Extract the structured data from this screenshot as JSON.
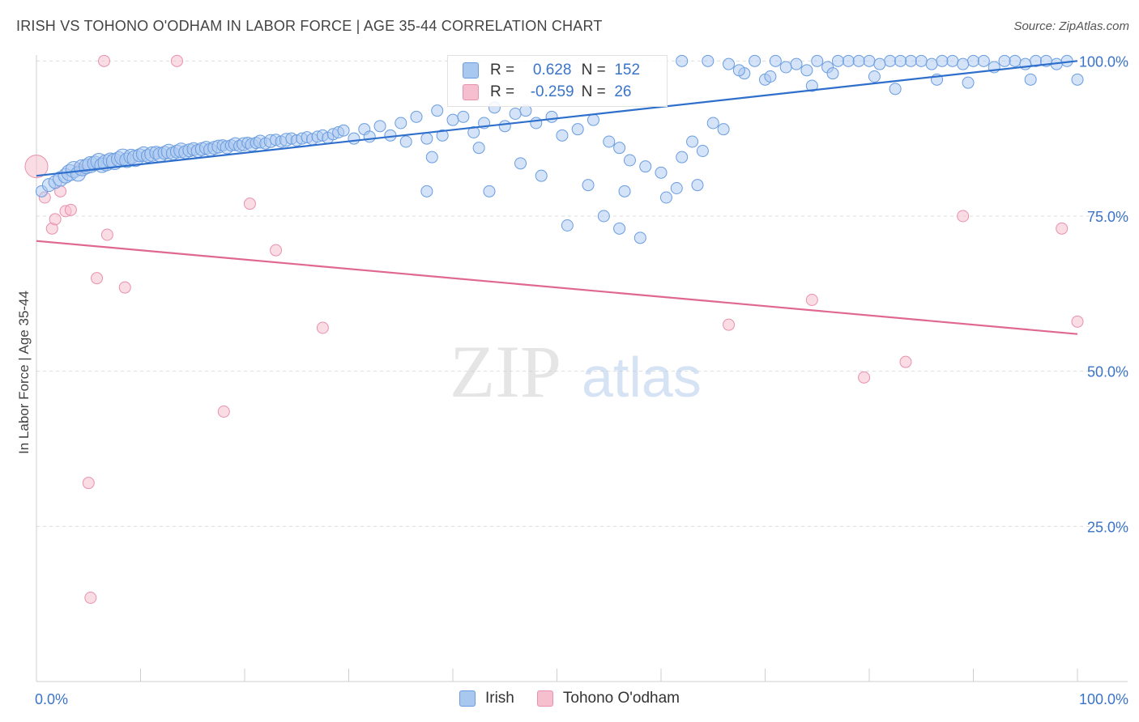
{
  "title": "IRISH VS TOHONO O'ODHAM IN LABOR FORCE | AGE 35-44 CORRELATION CHART",
  "source": "Source: ZipAtlas.com",
  "watermark": {
    "zip": "ZIP",
    "atlas": "atlas"
  },
  "legend": [
    {
      "r_label": "R =",
      "r_value": "0.628",
      "n_label": "N =",
      "n_value": "152"
    },
    {
      "r_label": "R =",
      "r_value": "-0.259",
      "n_label": "N =",
      "n_value": "26"
    }
  ],
  "colors": {
    "irish_fill": "#a9c8f0",
    "irish_stroke": "#6a9de0",
    "irish_line": "#2f6fcc",
    "tohono_fill": "#f6bfd0",
    "tohono_stroke": "#e891ad",
    "tohono_line": "#e0688f",
    "axis_label": "#3a74c8",
    "grid": "#dddddd"
  },
  "chart_data": {
    "type": "scatter",
    "title": "IRISH VS TOHONO O'ODHAM IN LABOR FORCE | AGE 35-44 CORRELATION CHART",
    "xlabel": "",
    "ylabel": "In Labor Force | Age 35-44",
    "xlim": [
      0,
      100
    ],
    "ylim": [
      0,
      102
    ],
    "x_tick_labels": [
      "0.0%",
      "100.0%"
    ],
    "y_ticks": [
      25,
      50,
      75,
      100
    ],
    "y_tick_labels": [
      "25.0%",
      "50.0%",
      "75.0%",
      "100.0%"
    ],
    "grid": true,
    "legend_position": "top-center",
    "series": [
      {
        "name": "Irish",
        "r": 0.628,
        "n": 152,
        "trend": {
          "x": [
            0,
            100
          ],
          "y": [
            81.5,
            100
          ]
        },
        "points": [
          [
            0.5,
            79.0,
            7
          ],
          [
            1.2,
            80.0,
            8
          ],
          [
            1.8,
            80.5,
            8
          ],
          [
            2.3,
            81.0,
            9
          ],
          [
            2.8,
            81.5,
            9
          ],
          [
            3.2,
            82.0,
            10
          ],
          [
            3.6,
            82.5,
            10
          ],
          [
            4.0,
            81.8,
            9
          ],
          [
            4.4,
            82.8,
            10
          ],
          [
            4.8,
            83.0,
            9
          ],
          [
            5.2,
            83.3,
            10
          ],
          [
            5.6,
            83.5,
            9
          ],
          [
            6.0,
            83.8,
            10
          ],
          [
            6.3,
            83.2,
            9
          ],
          [
            6.7,
            83.6,
            10
          ],
          [
            7.1,
            84.0,
            9
          ],
          [
            7.5,
            83.8,
            10
          ],
          [
            7.9,
            84.2,
            9
          ],
          [
            8.3,
            84.5,
            10
          ],
          [
            8.7,
            84.0,
            9
          ],
          [
            9.1,
            84.6,
            9
          ],
          [
            9.5,
            84.3,
            10
          ],
          [
            9.9,
            84.8,
            8
          ],
          [
            10.3,
            85.0,
            9
          ],
          [
            10.7,
            84.7,
            8
          ],
          [
            11.1,
            85.0,
            9
          ],
          [
            11.5,
            85.2,
            8
          ],
          [
            11.9,
            84.9,
            9
          ],
          [
            12.3,
            85.2,
            8
          ],
          [
            12.7,
            85.4,
            9
          ],
          [
            13.1,
            85.1,
            8
          ],
          [
            13.5,
            85.4,
            8
          ],
          [
            13.9,
            85.6,
            9
          ],
          [
            14.3,
            85.3,
            8
          ],
          [
            14.7,
            85.6,
            8
          ],
          [
            15.1,
            85.8,
            8
          ],
          [
            15.5,
            85.5,
            8
          ],
          [
            15.9,
            85.8,
            8
          ],
          [
            16.3,
            86.0,
            8
          ],
          [
            16.7,
            85.7,
            8
          ],
          [
            17.1,
            86.0,
            8
          ],
          [
            17.5,
            86.2,
            8
          ],
          [
            17.9,
            86.4,
            7
          ],
          [
            18.3,
            86.1,
            8
          ],
          [
            18.7,
            86.4,
            7
          ],
          [
            19.1,
            86.6,
            8
          ],
          [
            19.5,
            86.3,
            7
          ],
          [
            19.9,
            86.6,
            8
          ],
          [
            20.3,
            86.8,
            7
          ],
          [
            20.7,
            86.5,
            8
          ],
          [
            21.1,
            86.8,
            7
          ],
          [
            21.5,
            87.0,
            8
          ],
          [
            22.0,
            86.7,
            7
          ],
          [
            22.5,
            87.1,
            8
          ],
          [
            23.0,
            87.3,
            7
          ],
          [
            23.5,
            87.0,
            7
          ],
          [
            24.0,
            87.3,
            8
          ],
          [
            24.5,
            87.5,
            7
          ],
          [
            25.0,
            87.2,
            7
          ],
          [
            25.5,
            87.5,
            7
          ],
          [
            26.0,
            87.7,
            7
          ],
          [
            26.5,
            87.4,
            7
          ],
          [
            27.0,
            87.8,
            7
          ],
          [
            27.5,
            88.0,
            7
          ],
          [
            28.0,
            87.6,
            7
          ],
          [
            28.5,
            88.2,
            7
          ],
          [
            29.0,
            88.5,
            7
          ],
          [
            29.5,
            88.8,
            7
          ],
          [
            30.5,
            87.5,
            7
          ],
          [
            31.5,
            89.0,
            7
          ],
          [
            32.0,
            87.8,
            7
          ],
          [
            33.0,
            89.5,
            7
          ],
          [
            34.0,
            88.0,
            7
          ],
          [
            35.0,
            90.0,
            7
          ],
          [
            35.5,
            87.0,
            7
          ],
          [
            36.5,
            91.0,
            7
          ],
          [
            37.5,
            87.5,
            7
          ],
          [
            38.5,
            92.0,
            7
          ],
          [
            39.0,
            88.0,
            7
          ],
          [
            40.0,
            90.5,
            7
          ],
          [
            41.0,
            91.0,
            7
          ],
          [
            42.0,
            88.5,
            7
          ],
          [
            43.0,
            90.0,
            7
          ],
          [
            44.0,
            92.5,
            7
          ],
          [
            45.0,
            89.5,
            7
          ],
          [
            46.0,
            91.5,
            7
          ],
          [
            47.0,
            92.0,
            7
          ],
          [
            48.0,
            90.0,
            7
          ],
          [
            49.5,
            91.0,
            7
          ],
          [
            50.5,
            88.0,
            7
          ],
          [
            52.0,
            89.0,
            7
          ],
          [
            53.5,
            90.5,
            7
          ],
          [
            55.0,
            87.0,
            7
          ],
          [
            56.0,
            86.0,
            7
          ],
          [
            57.0,
            84.0,
            7
          ],
          [
            58.5,
            83.0,
            7
          ],
          [
            60.0,
            82.0,
            7
          ],
          [
            62.0,
            84.5,
            7
          ],
          [
            63.0,
            87.0,
            7
          ],
          [
            64.0,
            85.5,
            7
          ],
          [
            38.0,
            84.5,
            7
          ],
          [
            42.5,
            86.0,
            7
          ],
          [
            46.5,
            83.5,
            7
          ],
          [
            48.5,
            81.5,
            7
          ],
          [
            37.5,
            79.0,
            7
          ],
          [
            43.5,
            79.0,
            7
          ],
          [
            53.0,
            80.0,
            7
          ],
          [
            56.5,
            79.0,
            7
          ],
          [
            54.5,
            75.0,
            7
          ],
          [
            51.0,
            73.5,
            7
          ],
          [
            56.0,
            73.0,
            7
          ],
          [
            58.0,
            71.5,
            7
          ],
          [
            60.5,
            78.0,
            7
          ],
          [
            61.5,
            79.5,
            7
          ],
          [
            63.5,
            80.0,
            7
          ],
          [
            65.0,
            90.0,
            7
          ],
          [
            66.0,
            89.0,
            7
          ],
          [
            68.0,
            98.0,
            7
          ],
          [
            70.0,
            97.0,
            7
          ],
          [
            72.0,
            99.0,
            7
          ],
          [
            74.0,
            98.5,
            7
          ],
          [
            76.0,
            99.0,
            7
          ],
          [
            78.0,
            100.0,
            7
          ],
          [
            80.0,
            100.0,
            7
          ],
          [
            82.0,
            100.0,
            7
          ],
          [
            84.0,
            100.0,
            7
          ],
          [
            86.0,
            99.5,
            7
          ],
          [
            88.0,
            100.0,
            7
          ],
          [
            90.0,
            100.0,
            7
          ],
          [
            92.0,
            99.0,
            7
          ],
          [
            94.0,
            100.0,
            7
          ],
          [
            96.0,
            100.0,
            7
          ],
          [
            98.0,
            99.5,
            7
          ],
          [
            62.0,
            100.0,
            7
          ],
          [
            64.5,
            100.0,
            7
          ],
          [
            66.5,
            99.5,
            7
          ],
          [
            69.0,
            100.0,
            7
          ],
          [
            71.0,
            100.0,
            7
          ],
          [
            73.0,
            99.5,
            7
          ],
          [
            75.0,
            100.0,
            7
          ],
          [
            77.0,
            100.0,
            7
          ],
          [
            79.0,
            100.0,
            7
          ],
          [
            81.0,
            99.5,
            7
          ],
          [
            83.0,
            100.0,
            7
          ],
          [
            85.0,
            100.0,
            7
          ],
          [
            87.0,
            100.0,
            7
          ],
          [
            89.0,
            99.5,
            7
          ],
          [
            91.0,
            100.0,
            7
          ],
          [
            93.0,
            100.0,
            7
          ],
          [
            95.0,
            99.5,
            7
          ],
          [
            97.0,
            100.0,
            7
          ],
          [
            99.0,
            100.0,
            7
          ],
          [
            67.5,
            98.5,
            7
          ],
          [
            70.5,
            97.5,
            7
          ],
          [
            76.5,
            98.0,
            7
          ],
          [
            80.5,
            97.5,
            7
          ],
          [
            86.5,
            97.0,
            7
          ],
          [
            89.5,
            96.5,
            7
          ],
          [
            95.5,
            97.0,
            7
          ],
          [
            100.0,
            97.0,
            7
          ],
          [
            74.5,
            96.0,
            7
          ],
          [
            82.5,
            95.5,
            7
          ]
        ]
      },
      {
        "name": "Tohono O'odham",
        "r": -0.259,
        "n": 26,
        "trend": {
          "x": [
            0,
            100
          ],
          "y": [
            71.0,
            56.0
          ]
        },
        "points": [
          [
            0.0,
            83.0,
            14
          ],
          [
            0.8,
            78.0,
            7
          ],
          [
            1.5,
            73.0,
            7
          ],
          [
            1.8,
            74.5,
            7
          ],
          [
            2.3,
            79.0,
            7
          ],
          [
            2.8,
            75.8,
            7
          ],
          [
            3.3,
            76.0,
            7
          ],
          [
            4.2,
            82.5,
            7
          ],
          [
            5.0,
            32.0,
            7
          ],
          [
            5.2,
            13.5,
            7
          ],
          [
            5.8,
            65.0,
            7
          ],
          [
            6.5,
            100.0,
            7
          ],
          [
            6.8,
            72.0,
            7
          ],
          [
            8.5,
            63.5,
            7
          ],
          [
            13.5,
            100.0,
            7
          ],
          [
            18.0,
            43.5,
            7
          ],
          [
            20.5,
            77.0,
            7
          ],
          [
            23.0,
            69.5,
            7
          ],
          [
            27.5,
            57.0,
            7
          ],
          [
            66.5,
            57.5,
            7
          ],
          [
            74.5,
            61.5,
            7
          ],
          [
            79.5,
            49.0,
            7
          ],
          [
            83.5,
            51.5,
            7
          ],
          [
            89.0,
            75.0,
            7
          ],
          [
            100.0,
            58.0,
            7
          ],
          [
            98.5,
            73.0,
            7
          ]
        ]
      }
    ]
  }
}
